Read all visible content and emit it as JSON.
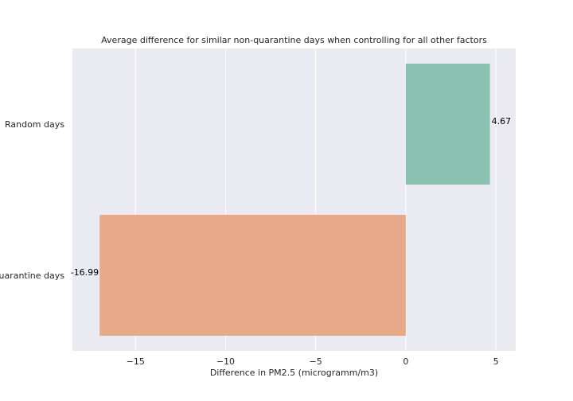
{
  "chart_data": {
    "type": "bar",
    "orientation": "horizontal",
    "title": "Average difference for similar non-quarantine days when controlling for all other factors",
    "xlabel": "Difference in PM2.5 (microgramm/m3)",
    "ylabel": "",
    "categories": [
      "Random days",
      "Quarantine days"
    ],
    "values": [
      4.67,
      -16.99
    ],
    "data_labels": [
      "4.67",
      "-16.99"
    ],
    "xlim": [
      -18.5,
      6.1
    ],
    "xticks": [
      -15,
      -10,
      -5,
      0,
      5
    ],
    "xtick_labels": [
      "−15",
      "−10",
      "−5",
      "0",
      "5"
    ],
    "grid": true,
    "legend": "none",
    "colors": {
      "background": "#eaeaf2",
      "grid": "#ffffff",
      "bars": [
        "#8bc1b0",
        "#e8a98b"
      ]
    }
  }
}
